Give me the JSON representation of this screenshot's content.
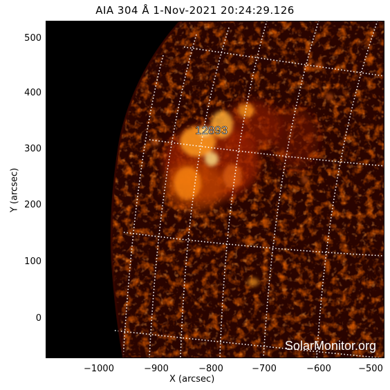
{
  "title": "AIA 304 Å   1-Nov-2021 20:24:29.126",
  "axes": {
    "xlabel": "X (arcsec)",
    "ylabel": "Y (arcsec)",
    "xticks": [
      "−1000",
      "−900",
      "−800",
      "−700",
      "−600",
      "−500"
    ],
    "yticks": [
      "500",
      "400",
      "300",
      "200",
      "100",
      "0"
    ]
  },
  "annotations": {
    "region_label": "12893",
    "watermark": "SolarMonitor.org"
  },
  "colors": {
    "background": "#ffffff",
    "space": "#000000",
    "solar_disk": "#2a0400",
    "emission_dim": "#7a1200",
    "emission_mid": "#c83c05",
    "emission_bright": "#ff9b1e",
    "emission_core": "#ffe28a",
    "grid_lines": "#ffffff"
  }
}
